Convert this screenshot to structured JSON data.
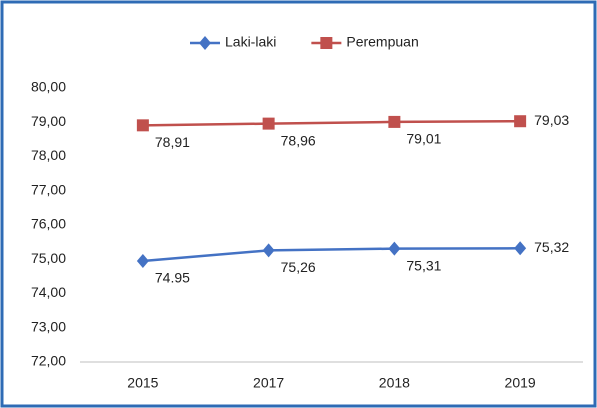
{
  "chart_data": {
    "type": "line",
    "categories": [
      "2015",
      "2017",
      "2018",
      "2019"
    ],
    "series": [
      {
        "name": "Laki-laki",
        "color": "#4472c4",
        "marker": "diamond",
        "values": [
          74.95,
          75.26,
          75.31,
          75.32
        ],
        "value_labels": [
          "74.95",
          "75,26",
          "75,31",
          "75,32"
        ]
      },
      {
        "name": "Perempuan",
        "color": "#c0504d",
        "marker": "square",
        "values": [
          78.91,
          78.96,
          79.01,
          79.03
        ],
        "value_labels": [
          "78,91",
          "78,96",
          "79,01",
          "79,03"
        ]
      }
    ],
    "ylim": [
      72,
      80
    ],
    "yticks": [
      {
        "value": 72,
        "label": "72,00"
      },
      {
        "value": 73,
        "label": "73,00"
      },
      {
        "value": 74,
        "label": "74,00"
      },
      {
        "value": 75,
        "label": "75,00"
      },
      {
        "value": 76,
        "label": "76,00"
      },
      {
        "value": 77,
        "label": "77,00"
      },
      {
        "value": 78,
        "label": "78,00"
      },
      {
        "value": 79,
        "label": "79,00"
      },
      {
        "value": 80,
        "label": "80,00"
      }
    ],
    "grid": false,
    "legend": "top"
  }
}
